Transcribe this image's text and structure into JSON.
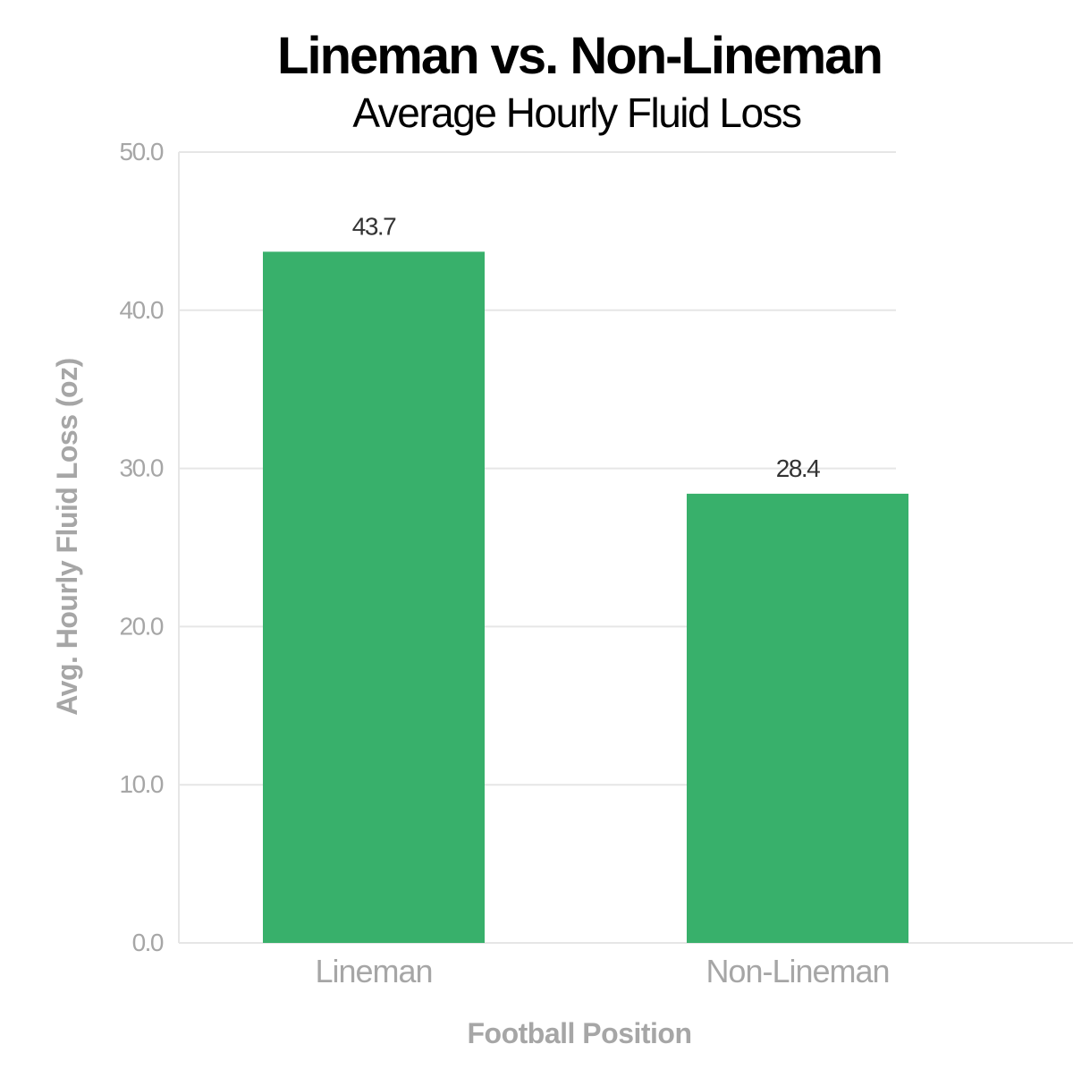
{
  "chart_data": {
    "type": "bar",
    "title": "Lineman vs. Non-Lineman",
    "subtitle": "Average Hourly Fluid Loss",
    "xlabel": "Football Position",
    "ylabel": "Avg. Hourly Fluid Loss (oz)",
    "categories": [
      "Lineman",
      "Non-Lineman"
    ],
    "values": [
      43.7,
      28.4
    ],
    "data_labels": [
      "43.7",
      "28.4"
    ],
    "ylim": [
      0,
      50
    ],
    "yticks": [
      0,
      10,
      20,
      30,
      40,
      50
    ],
    "ytick_labels": [
      "0.0",
      "10.0",
      "20.0",
      "30.0",
      "40.0",
      "50.0"
    ],
    "grid": true,
    "legend": "none",
    "colors": {
      "bar": "#38b06b",
      "grid": "#e6e6e6",
      "axis_text": "#a6a6a6",
      "title": "#000000",
      "data_label": "#333333"
    }
  }
}
